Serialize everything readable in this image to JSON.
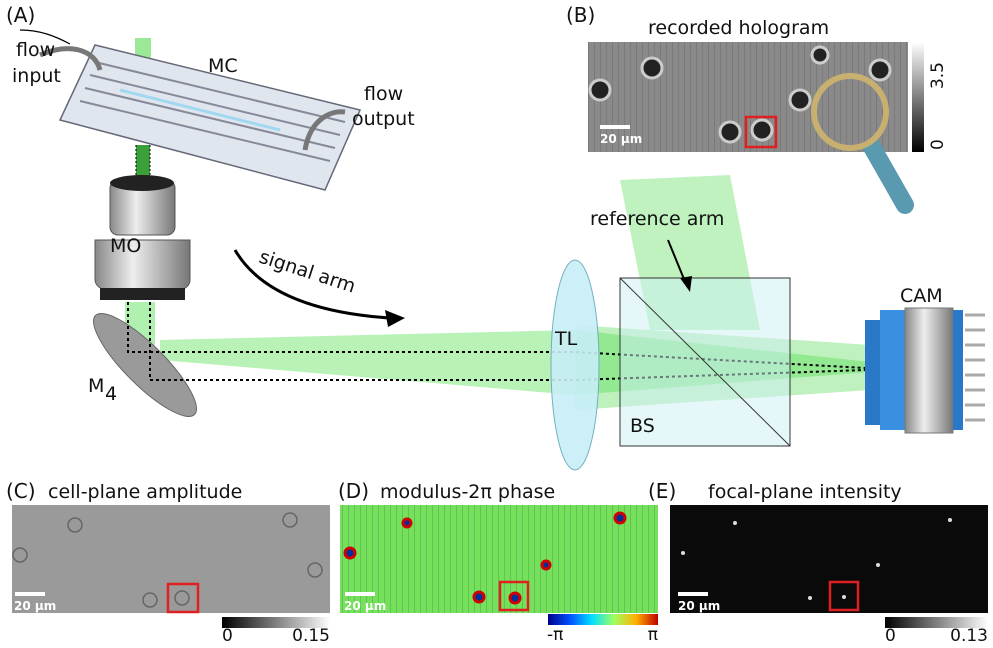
{
  "panel_a": {
    "tag": "(A)",
    "flow_input": [
      "flow",
      "input"
    ],
    "chip": "MC",
    "flow_output": [
      "flow",
      "output"
    ],
    "objective": "MO",
    "signal_arm": "signal arm",
    "mirror": {
      "label": "M",
      "subscript": "4"
    },
    "lens": "TL",
    "splitter": "BS",
    "reference_arm": "reference arm",
    "camera": "CAM"
  },
  "panel_b": {
    "tag": "(B)",
    "title": "recorded hologram",
    "scale_bar": "20 µm",
    "colorbar": [
      "3.5",
      "0"
    ]
  },
  "panel_c": {
    "tag": "(C)",
    "title": "cell-plane amplitude",
    "scale_bar": "20 µm",
    "colorbar": [
      "0",
      "0.15"
    ]
  },
  "panel_d": {
    "tag": "(D)",
    "title": "modulus-2π phase",
    "scale_bar": "20 µm",
    "colorbar": [
      "-π",
      "π"
    ]
  },
  "panel_e": {
    "tag": "(E)",
    "title": "focal-plane intensity",
    "scale_bar": "20 µm",
    "colorbar": [
      "0",
      "0.13"
    ]
  }
}
